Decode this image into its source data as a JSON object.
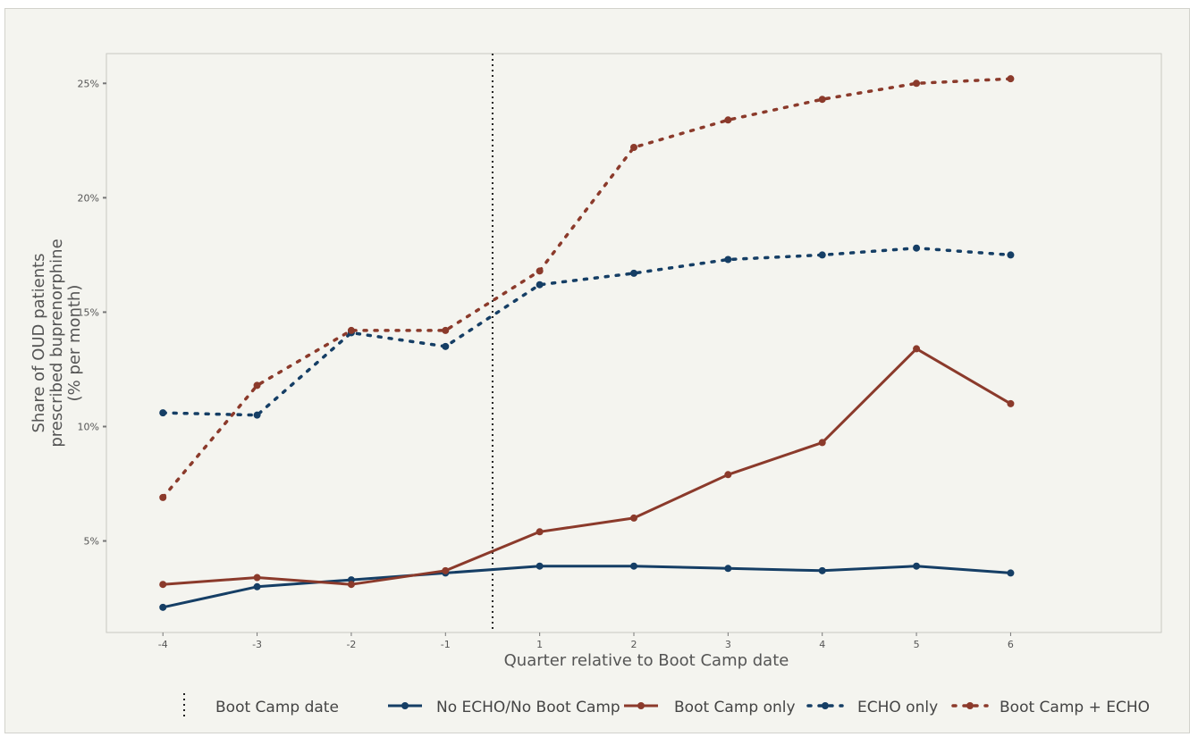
{
  "chart_data": {
    "type": "line",
    "title": "",
    "xlabel": "Quarter relative to Boot Camp date",
    "ylabel_lines": [
      "Share of OUD patients",
      "prescribed buprenorphine",
      "(% per month)"
    ],
    "x": [
      -4,
      -3,
      -2,
      -1,
      1,
      2,
      3,
      4,
      5,
      6
    ],
    "x_tick_labels": [
      "-4",
      "-3",
      "-2",
      "-1",
      "1",
      "2",
      "3",
      "4",
      "5",
      "6"
    ],
    "y_ticks": [
      5,
      10,
      15,
      20,
      25
    ],
    "y_tick_labels": [
      "5%",
      "10%",
      "15%",
      "20%",
      "25%"
    ],
    "ylim": [
      1.0,
      26.3
    ],
    "reference_line": {
      "position": -0.5,
      "label": "Boot Camp date",
      "style": "dotted",
      "color": "#222222"
    },
    "grid": false,
    "legend_position": "bottom",
    "series": [
      {
        "name": "No ECHO/No Boot Camp",
        "color": "#153e65",
        "style": "solid",
        "values": [
          2.1,
          3.0,
          3.3,
          3.6,
          3.9,
          3.9,
          3.8,
          3.7,
          3.9,
          3.6
        ]
      },
      {
        "name": "Boot Camp only",
        "color": "#8b3a2b",
        "style": "solid",
        "values": [
          3.1,
          3.4,
          3.1,
          3.7,
          5.4,
          6.0,
          7.9,
          9.3,
          13.4,
          11.0
        ]
      },
      {
        "name": "ECHO only",
        "color": "#153e65",
        "style": "dotted",
        "values": [
          10.6,
          10.5,
          14.1,
          13.5,
          16.2,
          16.7,
          17.3,
          17.5,
          17.8,
          17.5
        ]
      },
      {
        "name": "Boot Camp + ECHO",
        "color": "#8b3a2b",
        "style": "dotted",
        "values": [
          6.9,
          11.8,
          14.2,
          14.2,
          16.8,
          22.2,
          23.4,
          24.3,
          25.0,
          25.2
        ]
      }
    ]
  }
}
